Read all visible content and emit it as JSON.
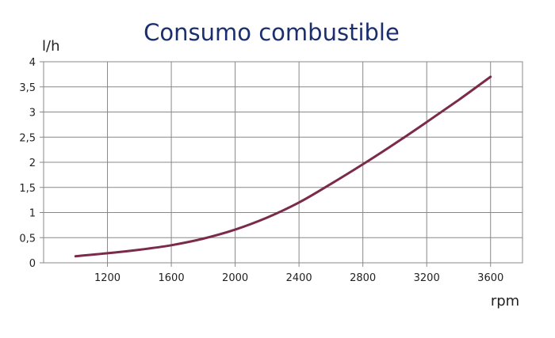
{
  "chart_data": {
    "type": "line",
    "title": "Consumo combustible",
    "xlabel": "rpm",
    "ylabel": "l/h",
    "xlim": [
      800,
      3800
    ],
    "ylim": [
      0,
      4
    ],
    "xticks": [
      1200,
      1600,
      2000,
      2400,
      2800,
      3200,
      3600
    ],
    "xtick_labels": [
      "1200",
      "1600",
      "2000",
      "2400",
      "2800",
      "3200",
      "3600"
    ],
    "yticks": [
      0,
      0.5,
      1,
      1.5,
      2,
      2.5,
      3,
      3.5,
      4
    ],
    "ytick_labels": [
      "0",
      "0,5",
      "1",
      "1,5",
      "2",
      "2,5",
      "3",
      "3,5",
      "4"
    ],
    "grid": true,
    "legend": "none",
    "line_color": "#7b2a4a",
    "title_color": "#1b2f6e",
    "series": [
      {
        "x": [
          1000,
          1200,
          1400,
          1600,
          1800,
          2000,
          2200,
          2400,
          2600,
          2800,
          3000,
          3200,
          3400,
          3600
        ],
        "values": [
          0.13,
          0.19,
          0.26,
          0.35,
          0.48,
          0.66,
          0.9,
          1.2,
          1.57,
          1.96,
          2.37,
          2.8,
          3.24,
          3.7
        ]
      }
    ]
  }
}
